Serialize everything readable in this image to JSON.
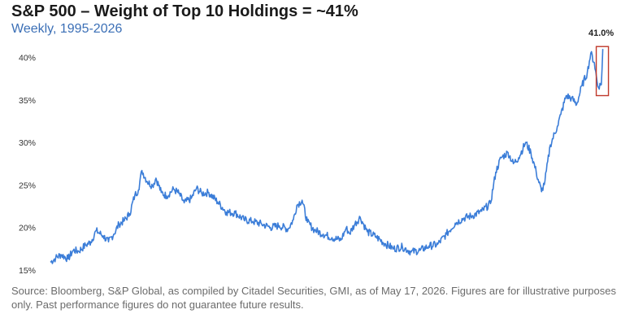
{
  "title": "S&P 500 – Weight of Top 10 Holdings = ~41%",
  "subtitle": "Weekly, 1995-2026",
  "source": "Source: Bloomberg, S&P Global, as compiled by Citadel Securities, GMI, as of May 17, 2026. Figures are for illustrative purposes only. Past performance figures do not guarantee future results.",
  "colors": {
    "line": "#3b7dd8",
    "subtitle": "#3b6fb6",
    "highlight_box": "#c0392b"
  },
  "chart_data": {
    "type": "line",
    "title": "S&P 500 – Weight of Top 10 Holdings = ~41%",
    "subtitle": "Weekly, 1995-2026",
    "xlabel": "",
    "ylabel": "",
    "xlim": [
      1995.0,
      2026.4
    ],
    "ylim": [
      14.5,
      41.5
    ],
    "xticks": [
      1996,
      2000,
      2004,
      2008,
      2012,
      2016,
      2020,
      2024
    ],
    "yticks": [
      {
        "value": 15,
        "label": "15%"
      },
      {
        "value": 20,
        "label": "20%"
      },
      {
        "value": 25,
        "label": "25%"
      },
      {
        "value": 30,
        "label": "30%"
      },
      {
        "value": 35,
        "label": "35%"
      },
      {
        "value": 40,
        "label": "40%"
      }
    ],
    "grid": false,
    "legend": "none",
    "series": [
      {
        "x": [
          1995.0,
          1995.3,
          1995.6,
          1996.0,
          1996.3,
          1996.6,
          1997.0,
          1997.3,
          1997.6,
          1998.0,
          1998.3,
          1998.6,
          1998.9,
          1999.2,
          1999.5,
          1999.8,
          2000.0,
          2000.2,
          2000.5,
          2000.8,
          2001.0,
          2001.3,
          2001.6,
          2002.0,
          2002.3,
          2002.6,
          2003.0,
          2003.3,
          2003.6,
          2004.0,
          2004.5,
          2005.0,
          2005.5,
          2006.0,
          2006.5,
          2007.0,
          2007.5,
          2008.0,
          2008.5,
          2008.8,
          2009.0,
          2009.3,
          2009.6,
          2010.0,
          2010.5,
          2011.0,
          2011.5,
          2011.8,
          2012.0,
          2012.3,
          2012.6,
          2013.0,
          2013.5,
          2014.0,
          2014.5,
          2015.0,
          2015.5,
          2016.0,
          2016.5,
          2017.0,
          2017.5,
          2018.0,
          2018.5,
          2019.0,
          2019.5,
          2020.0,
          2020.3,
          2020.6,
          2021.0,
          2021.3,
          2021.6,
          2022.0,
          2022.3,
          2022.6,
          2022.9,
          2023.1,
          2023.4,
          2023.8,
          2024.0,
          2024.3,
          2024.6,
          2024.9,
          2025.2,
          2025.5,
          2025.7,
          2025.9,
          2026.1,
          2026.3,
          2026.38
        ],
        "y": [
          15.9,
          16.4,
          16.8,
          16.3,
          17.3,
          17.2,
          17.9,
          18.3,
          19.6,
          19.0,
          18.3,
          19.2,
          20.4,
          20.8,
          21.6,
          23.8,
          24.4,
          26.7,
          25.4,
          24.9,
          25.8,
          24.1,
          23.7,
          24.5,
          24.0,
          22.9,
          23.4,
          24.6,
          24.0,
          24.1,
          23.0,
          21.8,
          21.7,
          20.9,
          20.7,
          20.4,
          20.0,
          20.2,
          19.8,
          20.9,
          22.6,
          23.2,
          20.6,
          19.7,
          19.2,
          18.8,
          18.5,
          19.9,
          19.3,
          20.4,
          21.2,
          19.5,
          18.9,
          18.1,
          17.5,
          17.7,
          17.1,
          17.3,
          17.8,
          18.0,
          19.2,
          20.5,
          21.1,
          21.4,
          21.9,
          22.8,
          26.5,
          28.2,
          28.8,
          27.5,
          28.2,
          30.0,
          28.8,
          26.5,
          24.2,
          25.5,
          29.7,
          31.9,
          33.3,
          35.5,
          35.2,
          34.5,
          36.7,
          38.2,
          40.5,
          39.4,
          36.6,
          36.8,
          41.0
        ]
      }
    ],
    "annotations": [
      {
        "text": "41.0%",
        "x": 2026.38,
        "y": 41.0
      }
    ]
  }
}
